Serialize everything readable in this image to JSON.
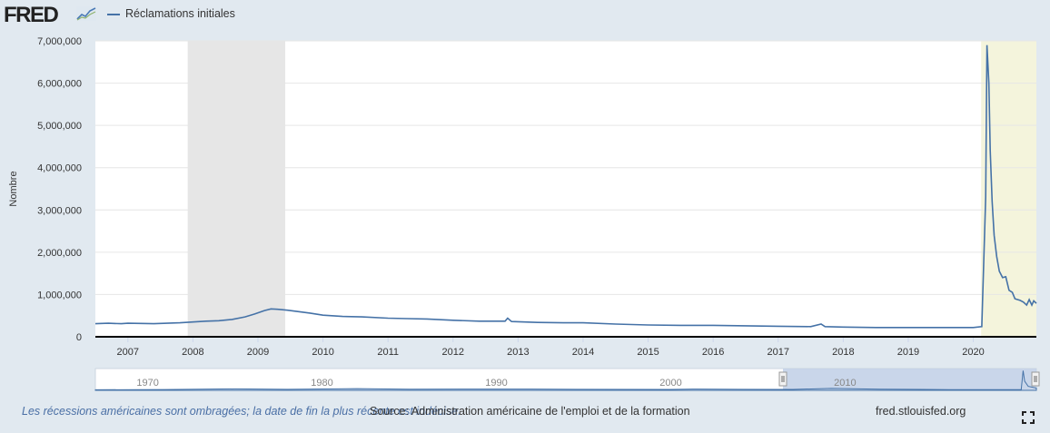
{
  "header": {
    "logo_text": "FRED",
    "logo_icon": "chart-trend-icon",
    "legend_label": "Réclamations initiales"
  },
  "footer": {
    "note": "Les récessions américaines sont ombragées; la date de fin la plus récente est indécise.",
    "source": "Source: Administration américaine de l'emploi et de la formation",
    "site": "fred.stlouisfed.org",
    "fullscreen_icon": "fullscreen-icon"
  },
  "colors": {
    "series": "#4572a7",
    "recession": "#e6e6e6",
    "recent_recession": "#f4f4dc",
    "navigator_fill": "#c0cfe6",
    "background": "#e1e9f0"
  },
  "chart_data": {
    "type": "line",
    "ylabel": "Nombre",
    "xlim": [
      2006.5,
      2020.97
    ],
    "ylim": [
      0,
      7000000
    ],
    "yticks": [
      0,
      1000000,
      2000000,
      3000000,
      4000000,
      5000000,
      6000000,
      7000000
    ],
    "ytick_labels": [
      "0",
      "1,000,000",
      "2,000,000",
      "3,000,000",
      "4,000,000",
      "5,000,000",
      "6,000,000",
      "7,000,000"
    ],
    "xticks": [
      2007,
      2008,
      2009,
      2010,
      2011,
      2012,
      2013,
      2014,
      2015,
      2016,
      2017,
      2018,
      2019,
      2020
    ],
    "xtick_labels": [
      "2007",
      "2008",
      "2009",
      "2010",
      "2011",
      "2012",
      "2013",
      "2014",
      "2015",
      "2016",
      "2017",
      "2018",
      "2019",
      "2020"
    ],
    "grid": true,
    "legend_position": "top-left",
    "recessions": [
      [
        2007.92,
        2009.42
      ],
      [
        2020.12,
        2020.97
      ]
    ],
    "series": [
      {
        "name": "Réclamations initiales",
        "x": [
          2006.5,
          2006.7,
          2006.9,
          2007.0,
          2007.2,
          2007.4,
          2007.6,
          2007.8,
          2008.0,
          2008.2,
          2008.4,
          2008.6,
          2008.8,
          2008.95,
          2009.1,
          2009.2,
          2009.3,
          2009.45,
          2009.6,
          2009.8,
          2010.0,
          2010.3,
          2010.6,
          2011.0,
          2011.3,
          2011.6,
          2012.0,
          2012.4,
          2012.8,
          2012.84,
          2012.9,
          2013.3,
          2013.7,
          2014.0,
          2014.5,
          2015.0,
          2015.5,
          2016.0,
          2016.5,
          2017.0,
          2017.5,
          2017.66,
          2017.72,
          2018.0,
          2018.5,
          2019.0,
          2019.5,
          2020.0,
          2020.13,
          2020.19,
          2020.21,
          2020.22,
          2020.24,
          2020.26,
          2020.29,
          2020.32,
          2020.36,
          2020.4,
          2020.45,
          2020.5,
          2020.55,
          2020.6,
          2020.64,
          2020.68,
          2020.72,
          2020.77,
          2020.82,
          2020.86,
          2020.9,
          2020.93,
          2020.97
        ],
        "values": [
          310000,
          320000,
          310000,
          320000,
          315000,
          310000,
          320000,
          330000,
          350000,
          370000,
          380000,
          410000,
          470000,
          540000,
          620000,
          660000,
          650000,
          630000,
          600000,
          560000,
          510000,
          480000,
          470000,
          440000,
          430000,
          420000,
          390000,
          370000,
          370000,
          440000,
          360000,
          340000,
          330000,
          330000,
          300000,
          280000,
          270000,
          270000,
          260000,
          250000,
          240000,
          300000,
          240000,
          230000,
          220000,
          220000,
          220000,
          220000,
          240000,
          3300000,
          6900000,
          6600000,
          6000000,
          4400000,
          3200000,
          2400000,
          1900000,
          1550000,
          1400000,
          1420000,
          1100000,
          1050000,
          900000,
          880000,
          860000,
          820000,
          750000,
          880000,
          750000,
          850000,
          790000
        ]
      }
    ]
  },
  "navigator": {
    "ticks": [
      "1970",
      "1980",
      "1990",
      "2000",
      "2010"
    ]
  }
}
